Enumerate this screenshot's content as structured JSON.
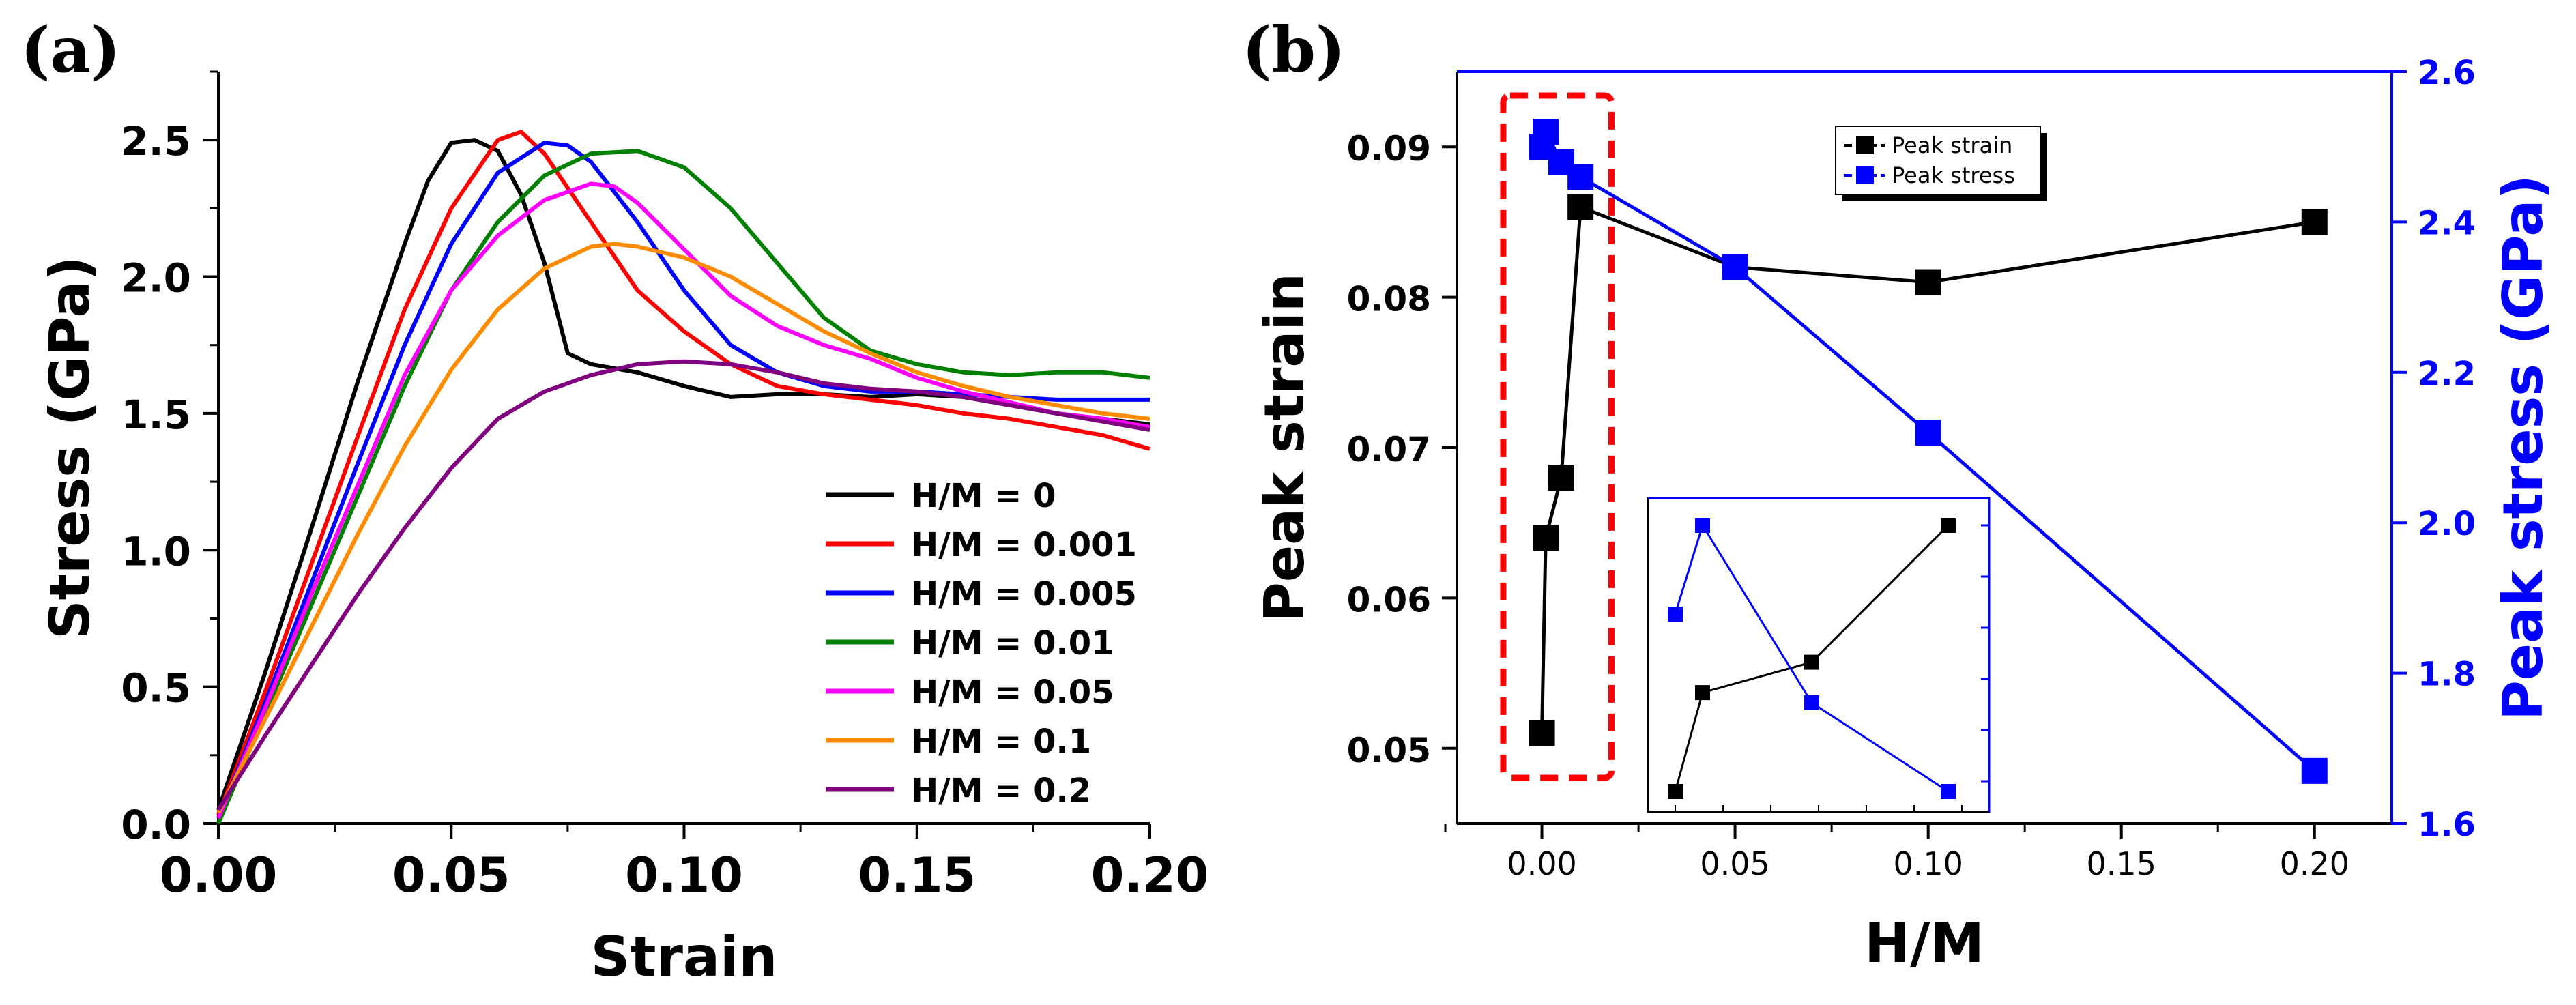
{
  "panel_a_label": "(a)",
  "panel_b_label": "(b)",
  "chart_data": [
    {
      "type": "line",
      "panel": "(a)",
      "xlabel": "Strain",
      "ylabel": "Stress (GPa)",
      "xlim": [
        0,
        0.2
      ],
      "ylim": [
        0,
        2.75
      ],
      "xticks": [
        "0.00",
        "0.05",
        "0.10",
        "0.15",
        "0.20"
      ],
      "yticks": [
        "0.0",
        "0.5",
        "1.0",
        "1.5",
        "2.0",
        "2.5"
      ],
      "xtick_values": [
        0,
        0.05,
        0.1,
        0.15,
        0.2
      ],
      "ytick_values": [
        0,
        0.5,
        1.0,
        1.5,
        2.0,
        2.5
      ],
      "legend_position": "bottom-right",
      "series": [
        {
          "name": "H/M = 0",
          "color": "#000000",
          "points": [
            [
              0,
              0.05
            ],
            [
              0.01,
              0.55
            ],
            [
              0.02,
              1.08
            ],
            [
              0.03,
              1.62
            ],
            [
              0.04,
              2.12
            ],
            [
              0.045,
              2.35
            ],
            [
              0.05,
              2.49
            ],
            [
              0.055,
              2.5
            ],
            [
              0.06,
              2.46
            ],
            [
              0.065,
              2.3
            ],
            [
              0.07,
              2.05
            ],
            [
              0.075,
              1.72
            ],
            [
              0.08,
              1.68
            ],
            [
              0.09,
              1.65
            ],
            [
              0.1,
              1.6
            ],
            [
              0.11,
              1.56
            ],
            [
              0.12,
              1.57
            ],
            [
              0.13,
              1.57
            ],
            [
              0.14,
              1.56
            ],
            [
              0.15,
              1.57
            ],
            [
              0.16,
              1.56
            ],
            [
              0.17,
              1.53
            ],
            [
              0.18,
              1.5
            ],
            [
              0.19,
              1.48
            ],
            [
              0.2,
              1.46
            ]
          ]
        },
        {
          "name": "H/M = 0.001",
          "color": "#ff0000",
          "points": [
            [
              0,
              0.03
            ],
            [
              0.01,
              0.48
            ],
            [
              0.02,
              0.95
            ],
            [
              0.03,
              1.42
            ],
            [
              0.04,
              1.88
            ],
            [
              0.05,
              2.25
            ],
            [
              0.06,
              2.5
            ],
            [
              0.065,
              2.53
            ],
            [
              0.07,
              2.45
            ],
            [
              0.08,
              2.2
            ],
            [
              0.09,
              1.95
            ],
            [
              0.1,
              1.8
            ],
            [
              0.11,
              1.68
            ],
            [
              0.12,
              1.6
            ],
            [
              0.13,
              1.57
            ],
            [
              0.14,
              1.55
            ],
            [
              0.15,
              1.53
            ],
            [
              0.16,
              1.5
            ],
            [
              0.17,
              1.48
            ],
            [
              0.18,
              1.45
            ],
            [
              0.19,
              1.42
            ],
            [
              0.2,
              1.37
            ]
          ]
        },
        {
          "name": "H/M = 0.005",
          "color": "#0000ff",
          "points": [
            [
              0,
              0.02
            ],
            [
              0.01,
              0.44
            ],
            [
              0.02,
              0.88
            ],
            [
              0.03,
              1.32
            ],
            [
              0.04,
              1.75
            ],
            [
              0.05,
              2.12
            ],
            [
              0.06,
              2.38
            ],
            [
              0.07,
              2.49
            ],
            [
              0.075,
              2.48
            ],
            [
              0.08,
              2.42
            ],
            [
              0.09,
              2.2
            ],
            [
              0.1,
              1.95
            ],
            [
              0.11,
              1.75
            ],
            [
              0.12,
              1.65
            ],
            [
              0.13,
              1.6
            ],
            [
              0.14,
              1.58
            ],
            [
              0.15,
              1.58
            ],
            [
              0.16,
              1.57
            ],
            [
              0.17,
              1.56
            ],
            [
              0.18,
              1.55
            ],
            [
              0.19,
              1.55
            ],
            [
              0.2,
              1.55
            ]
          ]
        },
        {
          "name": "H/M = 0.01",
          "color": "#008000",
          "points": [
            [
              0,
              0.0
            ],
            [
              0.01,
              0.4
            ],
            [
              0.02,
              0.8
            ],
            [
              0.03,
              1.2
            ],
            [
              0.04,
              1.6
            ],
            [
              0.05,
              1.95
            ],
            [
              0.06,
              2.2
            ],
            [
              0.07,
              2.37
            ],
            [
              0.08,
              2.45
            ],
            [
              0.09,
              2.46
            ],
            [
              0.1,
              2.4
            ],
            [
              0.11,
              2.25
            ],
            [
              0.12,
              2.05
            ],
            [
              0.13,
              1.85
            ],
            [
              0.14,
              1.73
            ],
            [
              0.15,
              1.68
            ],
            [
              0.16,
              1.65
            ],
            [
              0.17,
              1.64
            ],
            [
              0.18,
              1.65
            ],
            [
              0.19,
              1.65
            ],
            [
              0.2,
              1.63
            ]
          ]
        },
        {
          "name": "H/M = 0.05",
          "color": "#ff00ff",
          "points": [
            [
              0,
              0.02
            ],
            [
              0.01,
              0.42
            ],
            [
              0.02,
              0.84
            ],
            [
              0.03,
              1.24
            ],
            [
              0.04,
              1.64
            ],
            [
              0.05,
              1.95
            ],
            [
              0.06,
              2.15
            ],
            [
              0.07,
              2.28
            ],
            [
              0.08,
              2.34
            ],
            [
              0.085,
              2.33
            ],
            [
              0.09,
              2.27
            ],
            [
              0.1,
              2.1
            ],
            [
              0.11,
              1.93
            ],
            [
              0.12,
              1.82
            ],
            [
              0.13,
              1.75
            ],
            [
              0.14,
              1.7
            ],
            [
              0.15,
              1.63
            ],
            [
              0.16,
              1.58
            ],
            [
              0.17,
              1.54
            ],
            [
              0.18,
              1.5
            ],
            [
              0.19,
              1.48
            ],
            [
              0.2,
              1.45
            ]
          ]
        },
        {
          "name": "H/M = 0.1",
          "color": "#ff8c00",
          "points": [
            [
              0,
              0.04
            ],
            [
              0.01,
              0.38
            ],
            [
              0.02,
              0.72
            ],
            [
              0.03,
              1.06
            ],
            [
              0.04,
              1.38
            ],
            [
              0.05,
              1.66
            ],
            [
              0.06,
              1.88
            ],
            [
              0.07,
              2.03
            ],
            [
              0.08,
              2.11
            ],
            [
              0.085,
              2.12
            ],
            [
              0.09,
              2.11
            ],
            [
              0.1,
              2.07
            ],
            [
              0.11,
              2.0
            ],
            [
              0.12,
              1.9
            ],
            [
              0.13,
              1.8
            ],
            [
              0.14,
              1.72
            ],
            [
              0.15,
              1.65
            ],
            [
              0.16,
              1.6
            ],
            [
              0.17,
              1.56
            ],
            [
              0.18,
              1.53
            ],
            [
              0.19,
              1.5
            ],
            [
              0.2,
              1.48
            ]
          ]
        },
        {
          "name": "H/M = 0.2",
          "color": "#800080",
          "points": [
            [
              0,
              0.05
            ],
            [
              0.01,
              0.32
            ],
            [
              0.02,
              0.58
            ],
            [
              0.03,
              0.84
            ],
            [
              0.04,
              1.08
            ],
            [
              0.05,
              1.3
            ],
            [
              0.06,
              1.48
            ],
            [
              0.07,
              1.58
            ],
            [
              0.08,
              1.64
            ],
            [
              0.09,
              1.68
            ],
            [
              0.1,
              1.69
            ],
            [
              0.11,
              1.68
            ],
            [
              0.12,
              1.65
            ],
            [
              0.13,
              1.61
            ],
            [
              0.14,
              1.59
            ],
            [
              0.15,
              1.58
            ],
            [
              0.16,
              1.56
            ],
            [
              0.17,
              1.53
            ],
            [
              0.18,
              1.5
            ],
            [
              0.19,
              1.47
            ],
            [
              0.2,
              1.44
            ]
          ]
        }
      ]
    },
    {
      "type": "line",
      "panel": "(b)",
      "xlabel": "H/M",
      "ylabel": "Peak strain",
      "ylabel_right": "Peak stress (GPa)",
      "xlim": [
        -0.022,
        0.22
      ],
      "ylim": [
        0.045,
        0.095
      ],
      "ylim_right": [
        1.6,
        2.6
      ],
      "xticks": [
        "0.00",
        "0.05",
        "0.10",
        "0.15",
        "0.20"
      ],
      "yticks": [
        "0.05",
        "0.06",
        "0.07",
        "0.08",
        "0.09"
      ],
      "yticks_right": [
        "1.6",
        "1.8",
        "2.0",
        "2.2",
        "2.4",
        "2.6"
      ],
      "xtick_values": [
        0,
        0.05,
        0.1,
        0.15,
        0.2
      ],
      "ytick_values": [
        0.05,
        0.06,
        0.07,
        0.08,
        0.09
      ],
      "ytick_values_right": [
        1.6,
        1.8,
        2.0,
        2.2,
        2.4,
        2.6
      ],
      "right_axis_color": "#0000ff",
      "highlight_box": {
        "x_range": [
          -0.01,
          0.018
        ],
        "color": "#ff0000"
      },
      "legend_position": "top-right",
      "series": [
        {
          "name": "Peak strain",
          "color": "#000000",
          "axis": "left",
          "x": [
            0,
            0.001,
            0.005,
            0.01,
            0.05,
            0.1,
            0.2
          ],
          "y": [
            0.051,
            0.064,
            0.068,
            0.086,
            0.082,
            0.081,
            0.085
          ]
        },
        {
          "name": "Peak stress",
          "color": "#0000ff",
          "axis": "right",
          "x": [
            0,
            0.001,
            0.005,
            0.01,
            0.05,
            0.1,
            0.2
          ],
          "y": [
            2.5,
            2.52,
            2.48,
            2.46,
            2.34,
            2.12,
            1.67
          ]
        }
      ],
      "inset": {
        "position": "bottom-center",
        "series": [
          {
            "color": "#000000",
            "x": [
              0,
              0.001,
              0.005,
              0.01
            ],
            "y": [
              0.051,
              0.064,
              0.068,
              0.086
            ]
          },
          {
            "color": "#0000ff",
            "x": [
              0,
              0.001,
              0.005,
              0.01
            ],
            "y": [
              2.5,
              2.52,
              2.48,
              2.46
            ]
          }
        ]
      }
    }
  ]
}
